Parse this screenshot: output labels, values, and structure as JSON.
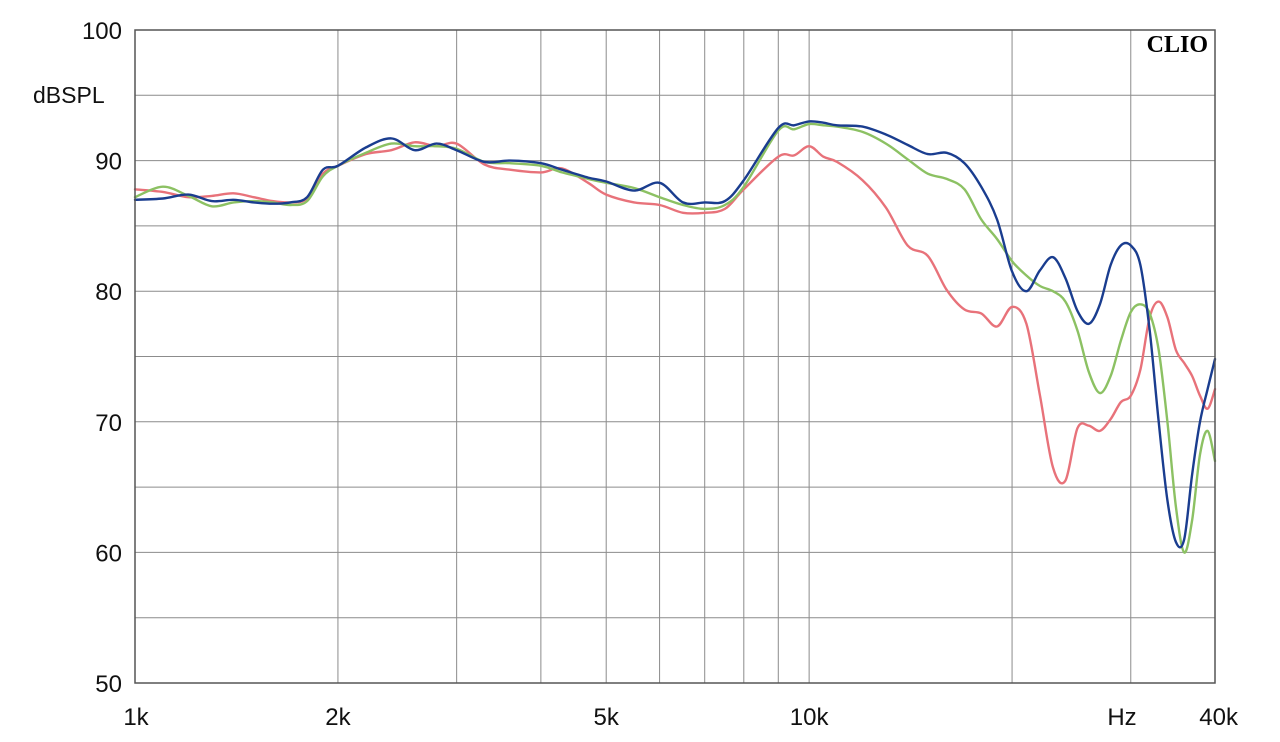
{
  "chart_data": {
    "type": "line",
    "title": "",
    "brand_label": "CLIO",
    "ylabel": "dBSPL",
    "xlabel": "Hz",
    "x_scale": "log",
    "xlim": [
      1000,
      40000
    ],
    "ylim": [
      50,
      100
    ],
    "grid": true,
    "x_ticks": [
      {
        "value": 1000,
        "label": "1k"
      },
      {
        "value": 2000,
        "label": "2k"
      },
      {
        "value": 5000,
        "label": "5k"
      },
      {
        "value": 10000,
        "label": "10k"
      },
      {
        "value": 40000,
        "label": "40k"
      }
    ],
    "y_ticks": [
      {
        "value": 50,
        "label": "50"
      },
      {
        "value": 60,
        "label": "60"
      },
      {
        "value": 70,
        "label": "70"
      },
      {
        "value": 80,
        "label": "80"
      },
      {
        "value": 90,
        "label": "90"
      },
      {
        "value": 100,
        "label": "100"
      }
    ],
    "series": [
      {
        "color": "#e8727a",
        "points": [
          [
            1000,
            87.8
          ],
          [
            1100,
            87.6
          ],
          [
            1200,
            87.2
          ],
          [
            1300,
            87.3
          ],
          [
            1400,
            87.5
          ],
          [
            1500,
            87.2
          ],
          [
            1600,
            86.9
          ],
          [
            1700,
            86.8
          ],
          [
            1800,
            87.1
          ],
          [
            1900,
            89.0
          ],
          [
            2000,
            89.6
          ],
          [
            2200,
            90.5
          ],
          [
            2400,
            90.8
          ],
          [
            2600,
            91.4
          ],
          [
            2800,
            91.1
          ],
          [
            3000,
            91.3
          ],
          [
            3300,
            89.7
          ],
          [
            3600,
            89.3
          ],
          [
            4000,
            89.1
          ],
          [
            4300,
            89.4
          ],
          [
            4700,
            88.3
          ],
          [
            5000,
            87.4
          ],
          [
            5500,
            86.8
          ],
          [
            6000,
            86.6
          ],
          [
            6500,
            86.0
          ],
          [
            7000,
            86.0
          ],
          [
            7500,
            86.3
          ],
          [
            8000,
            87.8
          ],
          [
            9000,
            90.3
          ],
          [
            9500,
            90.4
          ],
          [
            10000,
            91.1
          ],
          [
            10500,
            90.3
          ],
          [
            11000,
            89.9
          ],
          [
            12000,
            88.5
          ],
          [
            13000,
            86.4
          ],
          [
            14000,
            83.5
          ],
          [
            15000,
            82.7
          ],
          [
            16000,
            80.1
          ],
          [
            17000,
            78.6
          ],
          [
            18000,
            78.3
          ],
          [
            19000,
            77.3
          ],
          [
            20000,
            78.8
          ],
          [
            21000,
            77.5
          ],
          [
            22000,
            72.0
          ],
          [
            23000,
            66.5
          ],
          [
            24000,
            65.5
          ],
          [
            25000,
            69.5
          ],
          [
            26000,
            69.7
          ],
          [
            27000,
            69.3
          ],
          [
            28000,
            70.2
          ],
          [
            29000,
            71.5
          ],
          [
            30000,
            72.0
          ],
          [
            31000,
            74.0
          ],
          [
            32000,
            78.0
          ],
          [
            33000,
            79.2
          ],
          [
            34000,
            78.0
          ],
          [
            35000,
            75.5
          ],
          [
            36000,
            74.5
          ],
          [
            37000,
            73.5
          ],
          [
            38000,
            72.0
          ],
          [
            39000,
            71.0
          ],
          [
            40000,
            72.5
          ]
        ]
      },
      {
        "color": "#8cc163",
        "points": [
          [
            1000,
            87.2
          ],
          [
            1100,
            88.0
          ],
          [
            1200,
            87.3
          ],
          [
            1300,
            86.5
          ],
          [
            1400,
            86.8
          ],
          [
            1500,
            86.9
          ],
          [
            1600,
            86.8
          ],
          [
            1700,
            86.6
          ],
          [
            1800,
            86.9
          ],
          [
            1900,
            88.8
          ],
          [
            2000,
            89.6
          ],
          [
            2200,
            90.6
          ],
          [
            2400,
            91.3
          ],
          [
            2600,
            91.1
          ],
          [
            2800,
            91.1
          ],
          [
            3000,
            90.9
          ],
          [
            3300,
            89.9
          ],
          [
            3600,
            89.8
          ],
          [
            4000,
            89.6
          ],
          [
            4300,
            89.1
          ],
          [
            4700,
            88.6
          ],
          [
            5000,
            88.3
          ],
          [
            5500,
            87.9
          ],
          [
            6000,
            87.2
          ],
          [
            6500,
            86.6
          ],
          [
            7000,
            86.3
          ],
          [
            7500,
            86.6
          ],
          [
            8000,
            88.0
          ],
          [
            9000,
            92.3
          ],
          [
            9500,
            92.4
          ],
          [
            10000,
            92.8
          ],
          [
            10500,
            92.7
          ],
          [
            11000,
            92.6
          ],
          [
            12000,
            92.2
          ],
          [
            13000,
            91.3
          ],
          [
            14000,
            90.1
          ],
          [
            15000,
            89.0
          ],
          [
            16000,
            88.6
          ],
          [
            17000,
            87.8
          ],
          [
            18000,
            85.5
          ],
          [
            19000,
            84.0
          ],
          [
            20000,
            82.3
          ],
          [
            21000,
            81.2
          ],
          [
            22000,
            80.4
          ],
          [
            23000,
            80.0
          ],
          [
            24000,
            79.2
          ],
          [
            25000,
            77.0
          ],
          [
            26000,
            73.8
          ],
          [
            27000,
            72.2
          ],
          [
            28000,
            73.5
          ],
          [
            29000,
            76.2
          ],
          [
            30000,
            78.4
          ],
          [
            31000,
            79.0
          ],
          [
            32000,
            78.3
          ],
          [
            33000,
            75.5
          ],
          [
            34000,
            70.0
          ],
          [
            35000,
            63.5
          ],
          [
            36000,
            60.0
          ],
          [
            37000,
            62.5
          ],
          [
            38000,
            67.5
          ],
          [
            39000,
            69.3
          ],
          [
            40000,
            67.0
          ]
        ]
      },
      {
        "color": "#1a3d8f",
        "points": [
          [
            1000,
            87.0
          ],
          [
            1100,
            87.1
          ],
          [
            1200,
            87.4
          ],
          [
            1300,
            86.9
          ],
          [
            1400,
            87.0
          ],
          [
            1500,
            86.8
          ],
          [
            1600,
            86.7
          ],
          [
            1700,
            86.8
          ],
          [
            1800,
            87.2
          ],
          [
            1900,
            89.3
          ],
          [
            2000,
            89.6
          ],
          [
            2200,
            91.0
          ],
          [
            2400,
            91.7
          ],
          [
            2600,
            90.8
          ],
          [
            2800,
            91.3
          ],
          [
            3000,
            90.8
          ],
          [
            3300,
            89.9
          ],
          [
            3600,
            90.0
          ],
          [
            4000,
            89.8
          ],
          [
            4300,
            89.3
          ],
          [
            4700,
            88.7
          ],
          [
            5000,
            88.4
          ],
          [
            5500,
            87.7
          ],
          [
            6000,
            88.3
          ],
          [
            6500,
            86.8
          ],
          [
            7000,
            86.8
          ],
          [
            7500,
            86.9
          ],
          [
            8000,
            88.5
          ],
          [
            9000,
            92.5
          ],
          [
            9500,
            92.7
          ],
          [
            10000,
            93.0
          ],
          [
            10500,
            92.9
          ],
          [
            11000,
            92.7
          ],
          [
            12000,
            92.6
          ],
          [
            13000,
            92.0
          ],
          [
            14000,
            91.2
          ],
          [
            15000,
            90.5
          ],
          [
            16000,
            90.6
          ],
          [
            17000,
            89.8
          ],
          [
            18000,
            88.0
          ],
          [
            19000,
            85.5
          ],
          [
            20000,
            81.5
          ],
          [
            21000,
            80.0
          ],
          [
            22000,
            81.6
          ],
          [
            23000,
            82.6
          ],
          [
            24000,
            81.0
          ],
          [
            25000,
            78.5
          ],
          [
            26000,
            77.5
          ],
          [
            27000,
            79.0
          ],
          [
            28000,
            82.0
          ],
          [
            29000,
            83.5
          ],
          [
            30000,
            83.5
          ],
          [
            31000,
            82.0
          ],
          [
            32000,
            77.0
          ],
          [
            33000,
            70.0
          ],
          [
            34000,
            64.0
          ],
          [
            35000,
            60.8
          ],
          [
            36000,
            61.0
          ],
          [
            37000,
            66.0
          ],
          [
            38000,
            70.0
          ],
          [
            39000,
            72.5
          ],
          [
            40000,
            74.8
          ]
        ]
      }
    ]
  }
}
